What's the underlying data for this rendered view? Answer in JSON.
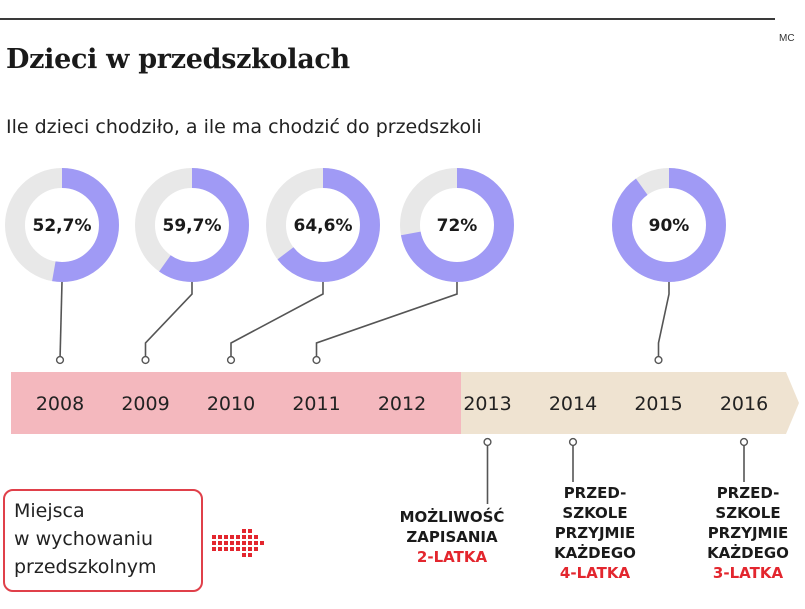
{
  "header": {
    "credit": "MC",
    "title": "Dzieci w przedszkolach",
    "subtitle": "Ile dzieci chodziło, a ile ma chodzić do przedszkoli"
  },
  "colors": {
    "ring_fill": "#a09af5",
    "ring_track": "#e8e8e8",
    "band_past": "#f4b8be",
    "band_future": "#efe3d1",
    "accent_red": "#e3262e"
  },
  "legend": {
    "lines": [
      "Miejsca",
      "w wychowaniu",
      "przedszkolnym"
    ]
  },
  "notes": [
    {
      "lines": [
        "MOŻLIWOŚĆ",
        "ZAPISANIA"
      ],
      "highlight": "2-LATKA"
    },
    {
      "lines": [
        "PRZED-",
        "SZKOLE",
        "PRZYJMIE",
        "KAŻDEGO"
      ],
      "highlight": "4-LATKA"
    },
    {
      "lines": [
        "PRZED-",
        "SZKOLE",
        "PRZYJMIE",
        "KAŻDEGO"
      ],
      "highlight": "3-LATKA"
    }
  ],
  "chart_data": {
    "type": "donut-timeline",
    "title": "Dzieci w przedszkolach",
    "subtitle": "Ile dzieci chodziło, a ile ma chodzić do przedszkoli",
    "years": [
      "2008",
      "2009",
      "2010",
      "2011",
      "2012",
      "2013",
      "2014",
      "2015",
      "2016"
    ],
    "past_years": [
      "2008",
      "2009",
      "2010",
      "2011",
      "2012"
    ],
    "future_years": [
      "2013",
      "2014",
      "2015",
      "2016"
    ],
    "series": [
      {
        "values": [
          {
            "year": "2008",
            "value": 52.7,
            "label": "52,7%"
          },
          {
            "year": "2009",
            "value": 59.7,
            "label": "59,7%"
          },
          {
            "year": "2010",
            "value": 64.6,
            "label": "64,6%"
          },
          {
            "year": "2011",
            "value": 72,
            "label": "72%"
          },
          {
            "year": "2015",
            "value": 90,
            "label": "90%"
          }
        ]
      }
    ],
    "annotations": [
      {
        "year": "2013",
        "text": "MOŻLIWOŚĆ ZAPISANIA 2-LATKA"
      },
      {
        "year": "2014",
        "text": "PRZED- SZKOLE PRZYJMIE KAŻDEGO 4-LATKA"
      },
      {
        "year": "2016",
        "text": "PRZED- SZKOLE PRZYJMIE KAŻDEGO 3-LATKA"
      }
    ]
  }
}
